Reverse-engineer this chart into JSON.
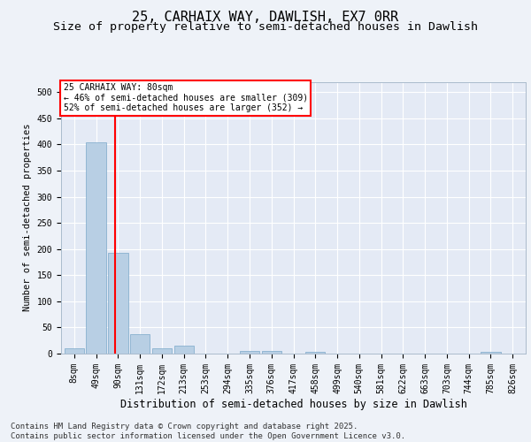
{
  "title1": "25, CARHAIX WAY, DAWLISH, EX7 0RR",
  "title2": "Size of property relative to semi-detached houses in Dawlish",
  "xlabel": "Distribution of semi-detached houses by size in Dawlish",
  "ylabel": "Number of semi-detached properties",
  "categories": [
    "8sqm",
    "49sqm",
    "90sqm",
    "131sqm",
    "172sqm",
    "213sqm",
    "253sqm",
    "294sqm",
    "335sqm",
    "376sqm",
    "417sqm",
    "458sqm",
    "499sqm",
    "540sqm",
    "581sqm",
    "622sqm",
    "663sqm",
    "703sqm",
    "744sqm",
    "785sqm",
    "826sqm"
  ],
  "values": [
    10,
    405,
    193,
    37,
    10,
    15,
    0,
    0,
    5,
    5,
    0,
    3,
    0,
    0,
    0,
    0,
    0,
    0,
    0,
    3,
    0
  ],
  "bar_color": "#b8cfe4",
  "bar_edge_color": "#7ba7c9",
  "vline_x": 1.85,
  "vline_color": "red",
  "annotation_text": "25 CARHAIX WAY: 80sqm\n← 46% of semi-detached houses are smaller (309)\n52% of semi-detached houses are larger (352) →",
  "annotation_box_color": "white",
  "annotation_box_edge_color": "red",
  "ylim": [
    0,
    520
  ],
  "yticks": [
    0,
    50,
    100,
    150,
    200,
    250,
    300,
    350,
    400,
    450,
    500
  ],
  "footnote": "Contains HM Land Registry data © Crown copyright and database right 2025.\nContains public sector information licensed under the Open Government Licence v3.0.",
  "bg_color": "#eef2f8",
  "plot_bg_color": "#e4eaf5",
  "grid_color": "#ffffff",
  "title1_fontsize": 11,
  "title2_fontsize": 9.5,
  "xlabel_fontsize": 8.5,
  "ylabel_fontsize": 7.5,
  "tick_fontsize": 7,
  "footnote_fontsize": 6.5,
  "annotation_fontsize": 7
}
